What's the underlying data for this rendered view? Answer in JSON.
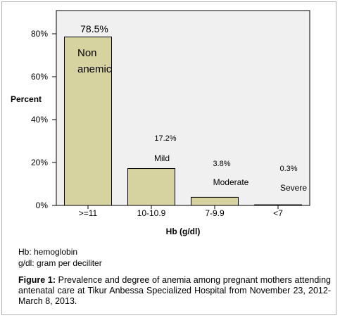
{
  "chart_data": {
    "type": "bar",
    "categories": [
      ">=11",
      "10-10.9",
      "7-9.9",
      "<7"
    ],
    "values": [
      78.5,
      17.2,
      3.8,
      0.3
    ],
    "value_labels": [
      "78.5%",
      "17.2%",
      "3.8%",
      "0.3%"
    ],
    "bar_annotations": [
      "Non anemic",
      "Mild",
      "Moderate",
      "Severe"
    ],
    "xlabel": "Hb (g/dl)",
    "ylabel": "Percent",
    "ylim": [
      0,
      80
    ],
    "yticks": [
      0,
      20,
      40,
      60,
      80
    ],
    "ytick_labels": [
      "0%",
      "20%",
      "40%",
      "60%",
      "80%"
    ],
    "grid": false,
    "bar_color": "#d6d3a0",
    "plot_background": "#f0f0f0"
  },
  "notes": {
    "line1": "Hb: hemoglobin",
    "line2": "g/dl: gram per deciliter"
  },
  "caption": {
    "label": "Figure 1:",
    "text": " Prevalence and degree of anemia among pregnant mothers attending antenatal care at Tikur Anbessa Specialized Hospital from November 23, 2012-March 8, 2013."
  }
}
